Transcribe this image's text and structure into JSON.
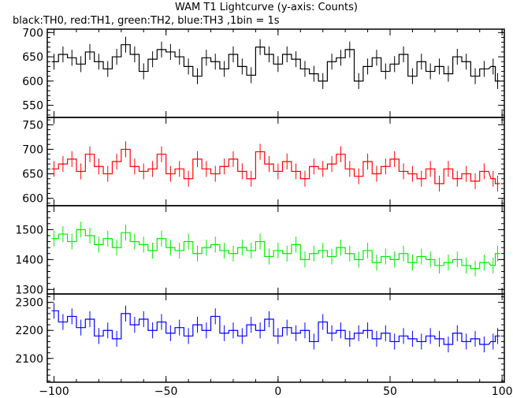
{
  "title": "WAM T1 Lightcurve (y-axis: Counts)",
  "subtitle": "black:TH0, red:TH1, green:TH2, blue:TH3 ,1bin = 1s",
  "chart_data": {
    "type": "line",
    "title": "WAM T1 Lightcurve (y-axis: Counts)",
    "subtitle": "black:TH0, red:TH1, green:TH2, blue:TH3 ,1bin = 1s",
    "xlim": [
      -103,
      101
    ],
    "xticks": [
      -100,
      -50,
      0,
      50,
      100
    ],
    "xtick_labels": [
      "−100",
      "−50",
      "0",
      "50",
      "100"
    ],
    "x": [
      -100,
      -96,
      -92,
      -88,
      -84,
      -80,
      -76,
      -72,
      -68,
      -64,
      -60,
      -56,
      -52,
      -48,
      -44,
      -40,
      -36,
      -32,
      -28,
      -24,
      -20,
      -16,
      -12,
      -8,
      -4,
      0,
      4,
      8,
      12,
      16,
      20,
      24,
      28,
      32,
      36,
      40,
      44,
      48,
      52,
      56,
      60,
      64,
      68,
      72,
      76,
      80,
      84,
      88,
      92,
      96,
      98
    ],
    "error_bars": true,
    "series": [
      {
        "name": "TH0",
        "color": "#000000",
        "ylim": [
          525,
          707
        ],
        "yticks": [
          550,
          600,
          650,
          700
        ],
        "values": [
          640,
          655,
          648,
          635,
          660,
          640,
          625,
          650,
          675,
          655,
          620,
          645,
          665,
          660,
          650,
          630,
          610,
          648,
          640,
          625,
          655,
          630,
          612,
          670,
          655,
          635,
          655,
          645,
          625,
          615,
          600,
          640,
          648,
          665,
          600,
          630,
          648,
          620,
          635,
          655,
          610,
          640,
          620,
          630,
          615,
          650,
          640,
          610,
          625,
          630,
          600
        ]
      },
      {
        "name": "TH1",
        "color": "#ff0000",
        "ylim": [
          585,
          765
        ],
        "yticks": [
          600,
          650,
          700,
          750
        ],
        "values": [
          660,
          670,
          680,
          655,
          690,
          665,
          650,
          675,
          700,
          665,
          655,
          660,
          690,
          650,
          660,
          640,
          680,
          660,
          650,
          665,
          680,
          655,
          640,
          695,
          670,
          655,
          675,
          655,
          640,
          665,
          660,
          670,
          690,
          660,
          645,
          675,
          650,
          665,
          680,
          655,
          650,
          640,
          660,
          630,
          660,
          640,
          650,
          635,
          655,
          640,
          630
        ]
      },
      {
        "name": "TH2",
        "color": "#00ee00",
        "ylim": [
          1285,
          1580
        ],
        "yticks": [
          1300,
          1400,
          1500
        ],
        "values": [
          1470,
          1485,
          1460,
          1500,
          1480,
          1450,
          1470,
          1440,
          1490,
          1460,
          1450,
          1430,
          1470,
          1440,
          1430,
          1460,
          1420,
          1440,
          1450,
          1430,
          1420,
          1440,
          1430,
          1460,
          1410,
          1430,
          1420,
          1450,
          1400,
          1420,
          1430,
          1410,
          1440,
          1420,
          1400,
          1430,
          1390,
          1410,
          1400,
          1420,
          1390,
          1410,
          1400,
          1380,
          1390,
          1400,
          1380,
          1370,
          1390,
          1380,
          1420
        ]
      },
      {
        "name": "TH3",
        "color": "#0000ff",
        "ylim": [
          2015,
          2330
        ],
        "yticks": [
          2100,
          2200,
          2300
        ],
        "values": [
          2270,
          2230,
          2250,
          2210,
          2240,
          2180,
          2200,
          2170,
          2260,
          2220,
          2240,
          2200,
          2230,
          2190,
          2210,
          2180,
          2220,
          2200,
          2250,
          2190,
          2200,
          2180,
          2220,
          2200,
          2240,
          2180,
          2210,
          2190,
          2200,
          2160,
          2230,
          2190,
          2200,
          2170,
          2190,
          2200,
          2170,
          2190,
          2160,
          2180,
          2170,
          2160,
          2180,
          2170,
          2150,
          2190,
          2160,
          2170,
          2150,
          2160,
          2180
        ]
      }
    ]
  }
}
